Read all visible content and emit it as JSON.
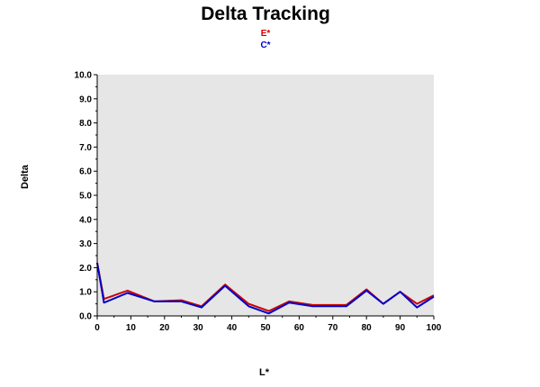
{
  "chart_data": {
    "type": "line",
    "title": "Delta Tracking",
    "xlabel": "L*",
    "ylabel": "Delta",
    "xlim": [
      0,
      100
    ],
    "ylim": [
      0,
      10
    ],
    "x_ticks": [
      "0",
      "10",
      "20",
      "30",
      "40",
      "50",
      "60",
      "70",
      "80",
      "90",
      "100"
    ],
    "y_ticks": [
      "0.0",
      "1.0",
      "2.0",
      "3.0",
      "4.0",
      "5.0",
      "6.0",
      "7.0",
      "8.0",
      "9.0",
      "10.0"
    ],
    "legend_position": "top-center",
    "grid": false,
    "x": [
      0,
      2,
      9,
      17,
      25,
      31,
      38,
      45,
      51,
      57,
      64,
      74,
      80,
      85,
      90,
      95,
      100
    ],
    "series": [
      {
        "name": "E*",
        "color": "#cc0000",
        "values": [
          2.2,
          0.7,
          1.05,
          0.6,
          0.65,
          0.4,
          1.3,
          0.5,
          0.2,
          0.6,
          0.45,
          0.45,
          1.1,
          0.5,
          1.0,
          0.5,
          0.85
        ]
      },
      {
        "name": "C*",
        "color": "#0000cc",
        "values": [
          2.2,
          0.55,
          0.95,
          0.6,
          0.6,
          0.35,
          1.25,
          0.4,
          0.1,
          0.55,
          0.4,
          0.4,
          1.05,
          0.5,
          1.0,
          0.35,
          0.8
        ]
      }
    ]
  }
}
